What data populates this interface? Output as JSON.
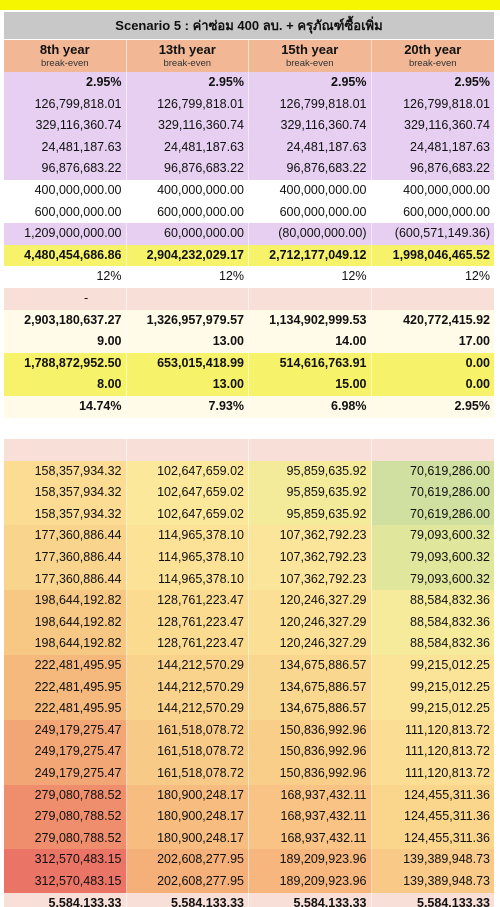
{
  "title": "Scenario 5 : ค่าซ่อม 400 ลบ. + ครุภัณฑ์ซื้อเพิ่ม",
  "columns": [
    {
      "year": "8th year",
      "sub": "break-even"
    },
    {
      "year": "13th year",
      "sub": "break-even"
    },
    {
      "year": "15th year",
      "sub": "break-even"
    },
    {
      "year": "20th year",
      "sub": "break-even"
    }
  ],
  "rows": [
    {
      "bg": "#e6cff0",
      "bold": true,
      "cells": [
        "2.95%",
        "2.95%",
        "2.95%",
        "2.95%"
      ]
    },
    {
      "bg": "#e6cff0",
      "bold": false,
      "cells": [
        "126,799,818.01",
        "126,799,818.01",
        "126,799,818.01",
        "126,799,818.01"
      ]
    },
    {
      "bg": "#e6cff0",
      "bold": false,
      "cells": [
        "329,116,360.74",
        "329,116,360.74",
        "329,116,360.74",
        "329,116,360.74"
      ]
    },
    {
      "bg": "#e6cff0",
      "bold": false,
      "cells": [
        "24,481,187.63",
        "24,481,187.63",
        "24,481,187.63",
        "24,481,187.63"
      ]
    },
    {
      "bg": "#e6cff0",
      "bold": false,
      "cells": [
        "96,876,683.22",
        "96,876,683.22",
        "96,876,683.22",
        "96,876,683.22"
      ]
    },
    {
      "bg": "#ffffff",
      "bold": false,
      "cells": [
        "400,000,000.00",
        "400,000,000.00",
        "400,000,000.00",
        "400,000,000.00"
      ]
    },
    {
      "bg": "#ffffff",
      "bold": false,
      "cells": [
        "600,000,000.00",
        "600,000,000.00",
        "600,000,000.00",
        "600,000,000.00"
      ]
    },
    {
      "bg": "#e6cff0",
      "bold": false,
      "cells": [
        "1,209,000,000.00",
        "60,000,000.00",
        "(80,000,000.00)",
        "(600,571,149.36)"
      ]
    },
    {
      "bg": "#f6f26a",
      "bold": true,
      "cells": [
        "4,480,454,686.86",
        "2,904,232,029.17",
        "2,712,177,049.12",
        "1,998,046,465.52"
      ]
    },
    {
      "bg": "#ffffff",
      "bold": false,
      "cells": [
        "12%",
        "12%",
        "12%",
        "12%"
      ]
    },
    {
      "bg": "#f8e0d8",
      "bold": false,
      "dash": true,
      "cells": [
        "-",
        "",
        "",
        ""
      ]
    },
    {
      "bg": "#fffbe8",
      "bold": true,
      "cells": [
        "2,903,180,637.27",
        "1,326,957,979.57",
        "1,134,902,999.53",
        "420,772,415.92"
      ]
    },
    {
      "bg": "#fffbe8",
      "bold": true,
      "cells": [
        "9.00",
        "13.00",
        "14.00",
        "17.00"
      ]
    },
    {
      "bg": "#f6f26a",
      "bold": true,
      "cells": [
        "1,788,872,952.50",
        "653,015,418.99",
        "514,616,763.91",
        "0.00"
      ]
    },
    {
      "bg": "#f6f26a",
      "bold": true,
      "cells": [
        "8.00",
        "13.00",
        "15.00",
        "0.00"
      ]
    },
    {
      "bg": "#fffbe8",
      "bold": true,
      "cells": [
        "14.74%",
        "7.93%",
        "6.98%",
        "2.95%"
      ]
    },
    {
      "bg": "#ffffff",
      "bold": false,
      "cells": [
        "",
        "",
        "",
        ""
      ]
    },
    {
      "bg": "#f8e0d8",
      "bold": false,
      "cells": [
        "",
        "",
        "",
        ""
      ]
    }
  ],
  "heat_rows": [
    {
      "cells": [
        "158,357,934.32",
        "102,647,659.02",
        "95,859,635.92",
        "70,619,286.00"
      ],
      "colors": [
        "#fbdc92",
        "#fbe89a",
        "#f4eb9a",
        "#cfe0a0"
      ]
    },
    {
      "cells": [
        "158,357,934.32",
        "102,647,659.02",
        "95,859,635.92",
        "70,619,286.00"
      ],
      "colors": [
        "#fbdc92",
        "#fbe89a",
        "#f4eb9a",
        "#cfe0a0"
      ]
    },
    {
      "cells": [
        "158,357,934.32",
        "102,647,659.02",
        "95,859,635.92",
        "70,619,286.00"
      ],
      "colors": [
        "#fbdc92",
        "#fbe89a",
        "#f4eb9a",
        "#cfe0a0"
      ]
    },
    {
      "cells": [
        "177,360,886.44",
        "114,965,378.10",
        "107,362,792.23",
        "79,093,600.32"
      ],
      "colors": [
        "#f9d48c",
        "#fbe296",
        "#fae59a",
        "#e0e69c"
      ]
    },
    {
      "cells": [
        "177,360,886.44",
        "114,965,378.10",
        "107,362,792.23",
        "79,093,600.32"
      ],
      "colors": [
        "#f9d48c",
        "#fbe296",
        "#fae59a",
        "#e0e69c"
      ]
    },
    {
      "cells": [
        "177,360,886.44",
        "114,965,378.10",
        "107,362,792.23",
        "79,093,600.32"
      ],
      "colors": [
        "#f9d48c",
        "#fbe296",
        "#fae59a",
        "#e0e69c"
      ]
    },
    {
      "cells": [
        "198,644,192.82",
        "128,761,223.47",
        "120,246,327.29",
        "88,584,832.36"
      ],
      "colors": [
        "#f7c784",
        "#fadb90",
        "#fbdf94",
        "#f6eb9a"
      ]
    },
    {
      "cells": [
        "198,644,192.82",
        "128,761,223.47",
        "120,246,327.29",
        "88,584,832.36"
      ],
      "colors": [
        "#f7c784",
        "#fadb90",
        "#fbdf94",
        "#f6eb9a"
      ]
    },
    {
      "cells": [
        "198,644,192.82",
        "128,761,223.47",
        "120,246,327.29",
        "88,584,832.36"
      ],
      "colors": [
        "#f7c784",
        "#fadb90",
        "#fbdf94",
        "#f6eb9a"
      ]
    },
    {
      "cells": [
        "222,481,495.95",
        "144,212,570.29",
        "134,675,886.57",
        "99,215,012.25"
      ],
      "colors": [
        "#f5b87d",
        "#f9d28b",
        "#fad78e",
        "#fbe497"
      ]
    },
    {
      "cells": [
        "222,481,495.95",
        "144,212,570.29",
        "134,675,886.57",
        "99,215,012.25"
      ],
      "colors": [
        "#f5b87d",
        "#f9d28b",
        "#fad78e",
        "#fbe497"
      ]
    },
    {
      "cells": [
        "222,481,495.95",
        "144,212,570.29",
        "134,675,886.57",
        "99,215,012.25"
      ],
      "colors": [
        "#f5b87d",
        "#f9d28b",
        "#fad78e",
        "#fbe497"
      ]
    },
    {
      "cells": [
        "249,179,275.47",
        "161,518,078.72",
        "150,836,992.96",
        "111,120,813.72"
      ],
      "colors": [
        "#f2a575",
        "#f8ca87",
        "#f9ce89",
        "#fbdd93"
      ]
    },
    {
      "cells": [
        "249,179,275.47",
        "161,518,078.72",
        "150,836,992.96",
        "111,120,813.72"
      ],
      "colors": [
        "#f2a575",
        "#f8ca87",
        "#f9ce89",
        "#fbdd93"
      ]
    },
    {
      "cells": [
        "249,179,275.47",
        "161,518,078.72",
        "150,836,992.96",
        "111,120,813.72"
      ],
      "colors": [
        "#f2a575",
        "#f8ca87",
        "#f9ce89",
        "#fbdd93"
      ]
    },
    {
      "cells": [
        "279,080,788.52",
        "180,900,248.17",
        "168,937,432.11",
        "124,455,311.36"
      ],
      "colors": [
        "#ee8e6c",
        "#f7bd80",
        "#f8c384",
        "#fad68d"
      ]
    },
    {
      "cells": [
        "279,080,788.52",
        "180,900,248.17",
        "168,937,432.11",
        "124,455,311.36"
      ],
      "colors": [
        "#ee8e6c",
        "#f7bd80",
        "#f8c384",
        "#fad68d"
      ]
    },
    {
      "cells": [
        "279,080,788.52",
        "180,900,248.17",
        "168,937,432.11",
        "124,455,311.36"
      ],
      "colors": [
        "#ee8e6c",
        "#f7bd80",
        "#f8c384",
        "#fad68d"
      ]
    },
    {
      "cells": [
        "312,570,483.15",
        "202,608,277.95",
        "189,209,923.96",
        "139,389,948.73"
      ],
      "colors": [
        "#ea7466",
        "#f5b07a",
        "#f6b67d",
        "#f9ca87"
      ]
    },
    {
      "cells": [
        "312,570,483.15",
        "202,608,277.95",
        "189,209,923.96",
        "139,389,948.73"
      ],
      "colors": [
        "#ea7466",
        "#f5b07a",
        "#f6b67d",
        "#f9ca87"
      ]
    }
  ],
  "footer_row": {
    "bg": "#f8e0d8",
    "cells": [
      "5,584,133.33",
      "5,584,133.33",
      "5,584,133.33",
      "5,584,133.33"
    ]
  }
}
